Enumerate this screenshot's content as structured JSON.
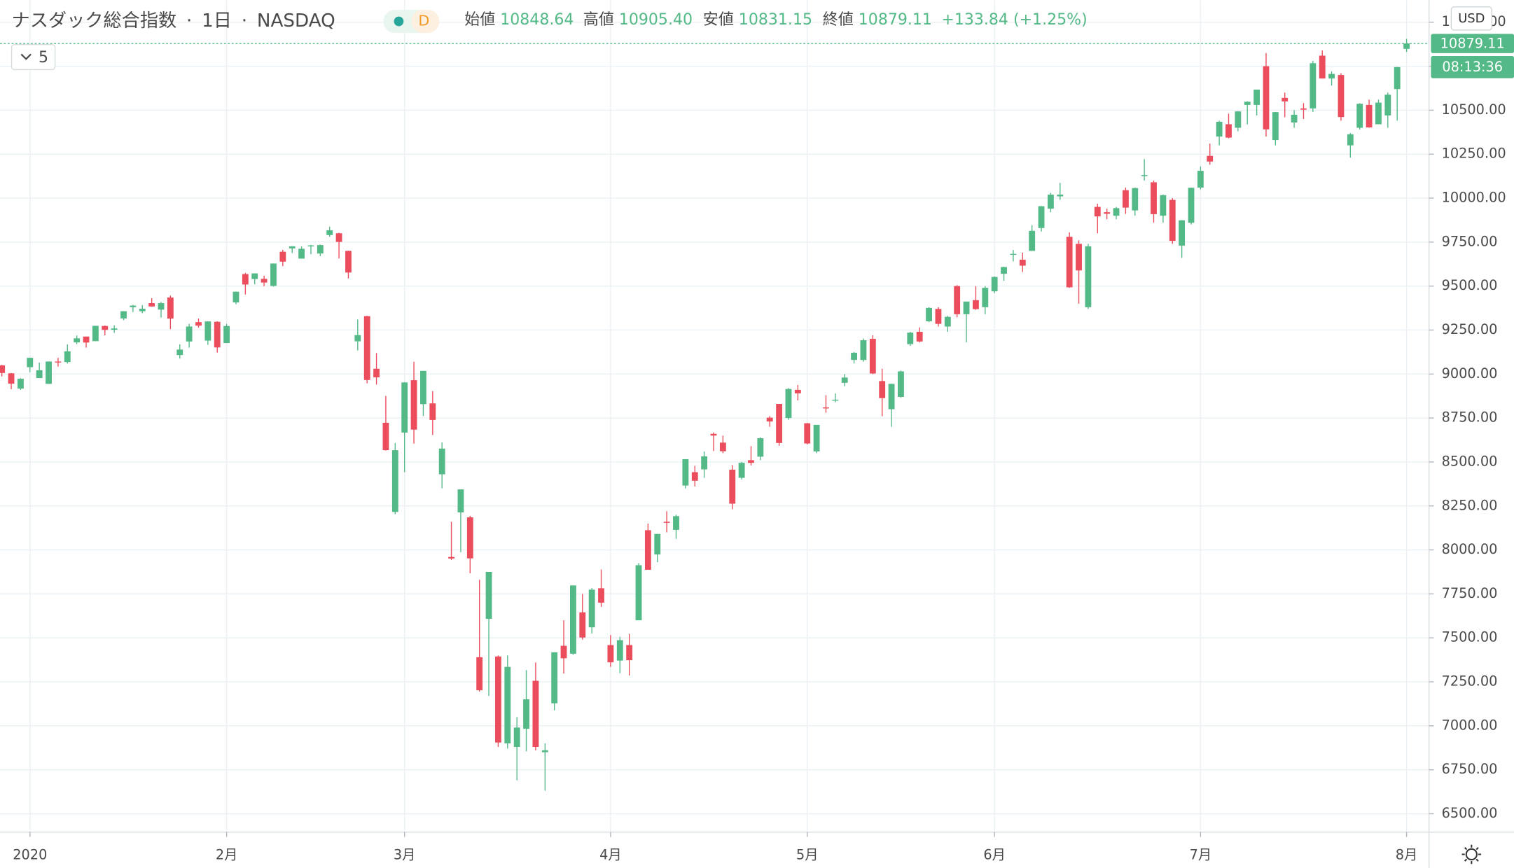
{
  "chart_data": {
    "type": "candlestick",
    "title": "ナスダック総合指数",
    "interval": "1日",
    "exchange": "NASDAQ",
    "resolution_badge": "D",
    "collapsed_indicators": 5,
    "currency": "USD",
    "countdown": "08:13:36",
    "ohlc_labels": [
      "始値",
      "高値",
      "安値",
      "終値"
    ],
    "last_value_labels": [
      "10848.64",
      "10905.40",
      "10831.15",
      "10879.11"
    ],
    "change_label": "+133.84 (+1.25%)",
    "up_color": "#53b987",
    "down_color": "#eb4d5c",
    "grid": true,
    "xlim": [
      -0.2,
      152.4
    ],
    "xticks": [
      {
        "value": 3,
        "label": "2020"
      },
      {
        "value": 24,
        "label": "2月"
      },
      {
        "value": 43,
        "label": "3月"
      },
      {
        "value": 65,
        "label": "4月"
      },
      {
        "value": 86,
        "label": "5月"
      },
      {
        "value": 106,
        "label": "6月"
      },
      {
        "value": 128,
        "label": "7月"
      },
      {
        "value": 150,
        "label": "8月"
      }
    ],
    "ylim": [
      6395.5,
      11125.5
    ],
    "yticks": [
      {
        "value": 6500,
        "label": "6500.00"
      },
      {
        "value": 6750,
        "label": "6750.00"
      },
      {
        "value": 7000,
        "label": "7000.00"
      },
      {
        "value": 7250,
        "label": "7250.00"
      },
      {
        "value": 7500,
        "label": "7500.00"
      },
      {
        "value": 7750,
        "label": "7750.00"
      },
      {
        "value": 8000,
        "label": "8000.00"
      },
      {
        "value": 8250,
        "label": "8250.00"
      },
      {
        "value": 8500,
        "label": "8500.00"
      },
      {
        "value": 8750,
        "label": "8750.00"
      },
      {
        "value": 9000,
        "label": "9000.00"
      },
      {
        "value": 9250,
        "label": "9250.00"
      },
      {
        "value": 9500,
        "label": "9500.00"
      },
      {
        "value": 9750,
        "label": "9750.00"
      },
      {
        "value": 10000,
        "label": "10000.00"
      },
      {
        "value": 10250,
        "label": "10250.00"
      },
      {
        "value": 10500,
        "label": "10500.00"
      },
      {
        "value": 10750,
        "label": "10750.00"
      },
      {
        "value": 11000,
        "label": "11000.00"
      }
    ],
    "candles": {
      "open": [
        9049,
        9004,
        8917,
        9039,
        8977,
        8944,
        9071,
        9068,
        9180,
        9213,
        9187,
        9273,
        9252,
        9316,
        9380,
        9357,
        9403,
        9366,
        9435,
        9108,
        9185,
        9295,
        9190,
        9297,
        9176,
        9407,
        9568,
        9540,
        9541,
        9501,
        9695,
        9714,
        9656,
        9726,
        9685,
        9790,
        9800,
        9700,
        9186,
        9329,
        9030,
        8723,
        8216,
        8667,
        8965,
        8829,
        8833,
        8430,
        7960,
        8213,
        8185,
        7390,
        7608,
        7394,
        6900,
        6880,
        6983,
        7256,
        6850,
        7128,
        7455,
        7410,
        7645,
        7560,
        7782,
        7459,
        7371,
        7459,
        7600,
        8112,
        7974,
        8160,
        8114,
        8366,
        8442,
        8458,
        8660,
        8610,
        8456,
        8410,
        8510,
        8530,
        8752,
        8830,
        8750,
        8910,
        8720,
        8560,
        8810,
        8850,
        8950,
        9080,
        9080,
        9200,
        8960,
        8800,
        8870,
        9170,
        9240,
        9300,
        9370,
        9270,
        9500,
        9340,
        9420,
        9380,
        9470,
        9570,
        9680,
        9650,
        9700,
        9830,
        9940,
        10010,
        9780,
        9740,
        9380,
        9950,
        9920,
        9900,
        10045,
        9930,
        10130,
        10090,
        9900,
        9990,
        9730,
        9860,
        10060,
        10240,
        10350,
        10420,
        10400,
        10530,
        10530,
        10750,
        10330,
        10570,
        10430,
        10510,
        10510,
        10810,
        10680,
        10700,
        10300,
        10400,
        10530,
        10420,
        10470,
        10620,
        10848.64
      ],
      "high": [
        9052,
        9006,
        8976,
        9093,
        9065,
        9072,
        9092,
        9168,
        9219,
        9213,
        9274,
        9276,
        9277,
        9357,
        9393,
        9392,
        9431,
        9410,
        9446,
        9169,
        9285,
        9315,
        9300,
        9300,
        9285,
        9469,
        9575,
        9573,
        9559,
        9629,
        9706,
        9727,
        9726,
        9734,
        9736,
        9838,
        9803,
        9701,
        9310,
        9331,
        9119,
        8875,
        8608,
        8953,
        9070,
        9018,
        8903,
        8611,
        8160,
        8345,
        8194,
        7830,
        7875,
        7400,
        7400,
        7050,
        7317,
        7360,
        6900,
        7418,
        7600,
        7798,
        7750,
        7783,
        7889,
        7516,
        7506,
        7523,
        7925,
        8150,
        8091,
        8220,
        8200,
        8516,
        8478,
        8560,
        8668,
        8650,
        8482,
        8500,
        8590,
        8640,
        8761,
        8830,
        8920,
        8938,
        8722,
        8711,
        8880,
        8890,
        9000,
        9125,
        9202,
        9220,
        9030,
        8945,
        9020,
        9240,
        9265,
        9380,
        9380,
        9330,
        9505,
        9410,
        9500,
        9500,
        9555,
        9610,
        9705,
        9690,
        9846,
        9955,
        10030,
        10087,
        9805,
        9760,
        9740,
        9968,
        9940,
        9950,
        10060,
        10060,
        10222,
        10100,
        10020,
        10000,
        9875,
        10060,
        10180,
        10310,
        10440,
        10480,
        10493,
        10550,
        10617,
        10825,
        10490,
        10600,
        10500,
        10540,
        10780,
        10840,
        10720,
        10710,
        10370,
        10540,
        10560,
        10560,
        10600,
        10746,
        10905.4
      ],
      "low": [
        8986,
        8914,
        8910,
        9010,
        8977,
        8944,
        9042,
        9060,
        9170,
        9150,
        9187,
        9220,
        9234,
        9306,
        9352,
        9346,
        9383,
        9321,
        9255,
        9088,
        9150,
        9264,
        9166,
        9122,
        9176,
        9397,
        9452,
        9510,
        9499,
        9497,
        9613,
        9688,
        9656,
        9681,
        9670,
        9780,
        9657,
        9543,
        9134,
        8947,
        8940,
        8565,
        8203,
        8442,
        8604,
        8761,
        8653,
        8350,
        7943,
        7987,
        7867,
        7195,
        7170,
        6880,
        6870,
        6690,
        6855,
        6860,
        6631,
        7088,
        7297,
        7404,
        7490,
        7525,
        7676,
        7335,
        7300,
        7286,
        7600,
        7887,
        7930,
        8100,
        8063,
        8350,
        8361,
        8410,
        8562,
        8550,
        8231,
        8400,
        8480,
        8510,
        8700,
        8592,
        8740,
        8850,
        8600,
        8550,
        8780,
        8840,
        8930,
        9060,
        9070,
        9000,
        8760,
        8700,
        8865,
        9160,
        9180,
        9295,
        9270,
        9240,
        9322,
        9180,
        9365,
        9340,
        9460,
        9530,
        9640,
        9580,
        9700,
        9810,
        9920,
        9990,
        9490,
        9400,
        9370,
        9800,
        9880,
        9880,
        9910,
        9900,
        10100,
        9860,
        9860,
        9740,
        9660,
        9850,
        10050,
        10190,
        10300,
        10340,
        10380,
        10420,
        10470,
        10350,
        10300,
        10460,
        10400,
        10450,
        10490,
        10680,
        10640,
        10440,
        10230,
        10390,
        10400,
        10420,
        10400,
        10440,
        10831.15
      ],
      "close": [
        9006,
        8945,
        8973,
        9092,
        9021,
        9071,
        9069,
        9129,
        9203,
        9179,
        9274,
        9251,
        9259,
        9357,
        9389,
        9371,
        9384,
        9403,
        9315,
        9139,
        9270,
        9275,
        9299,
        9151,
        9273,
        9468,
        9509,
        9572,
        9520,
        9628,
        9639,
        9726,
        9712,
        9731,
        9733,
        9817,
        9751,
        9577,
        9221,
        8966,
        8981,
        8567,
        8567,
        8952,
        8684,
        9018,
        8739,
        8576,
        7951,
        8344,
        7952,
        7202,
        7875,
        6905,
        7335,
        6990,
        7151,
        6880,
        6861,
        7418,
        7384,
        7798,
        7502,
        7774,
        7700,
        7361,
        7487,
        7373,
        7913,
        7887,
        8091,
        8154,
        8192,
        8516,
        8393,
        8532,
        8650,
        8561,
        8263,
        8495,
        8495,
        8635,
        8730,
        8608,
        8915,
        8890,
        8605,
        8711,
        8809,
        8854,
        8980,
        9121,
        9192,
        9003,
        8863,
        8944,
        9015,
        9235,
        9185,
        9376,
        9285,
        9325,
        9340,
        9412,
        9369,
        9490,
        9552,
        9608,
        9683,
        9616,
        9814,
        9954,
        10020,
        10020,
        9493,
        9589,
        9726,
        9896,
        9911,
        9943,
        9946,
        10057,
        10131,
        9909,
        10017,
        9757,
        9874,
        10059,
        10155,
        10208,
        10434,
        10344,
        10493,
        10548,
        10617,
        10391,
        10489,
        10550,
        10474,
        10503,
        10767,
        10680,
        10706,
        10461,
        10363,
        10536,
        10402,
        10543,
        10588,
        10745,
        10879.11
      ]
    }
  }
}
